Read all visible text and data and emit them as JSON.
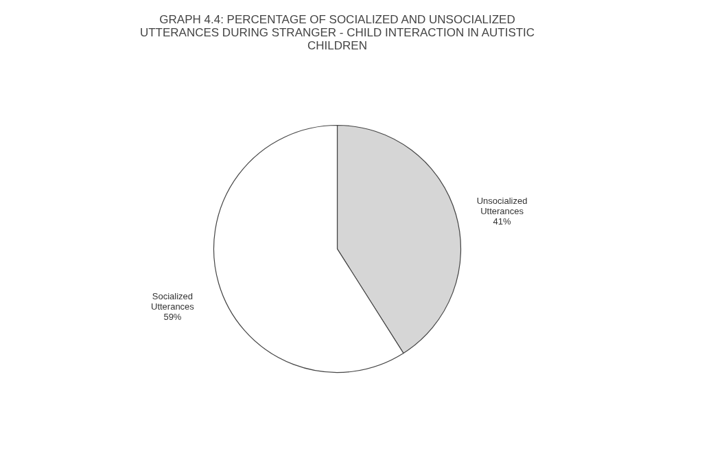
{
  "chart_data": {
    "type": "pie",
    "title": "GRAPH 4.4: PERCENTAGE OF SOCIALIZED AND UNSOCIALIZED UTTERANCES DURING STRANGER - CHILD INTERACTION IN AUTISTIC CHILDREN",
    "categories": [
      "Unsocialized Utterances",
      "Socialized Utterances"
    ],
    "values": [
      41,
      59
    ],
    "colors": [
      "#d6d6d6",
      "#ffffff"
    ],
    "value_labels": [
      "41%",
      "59%"
    ],
    "legend": false
  }
}
